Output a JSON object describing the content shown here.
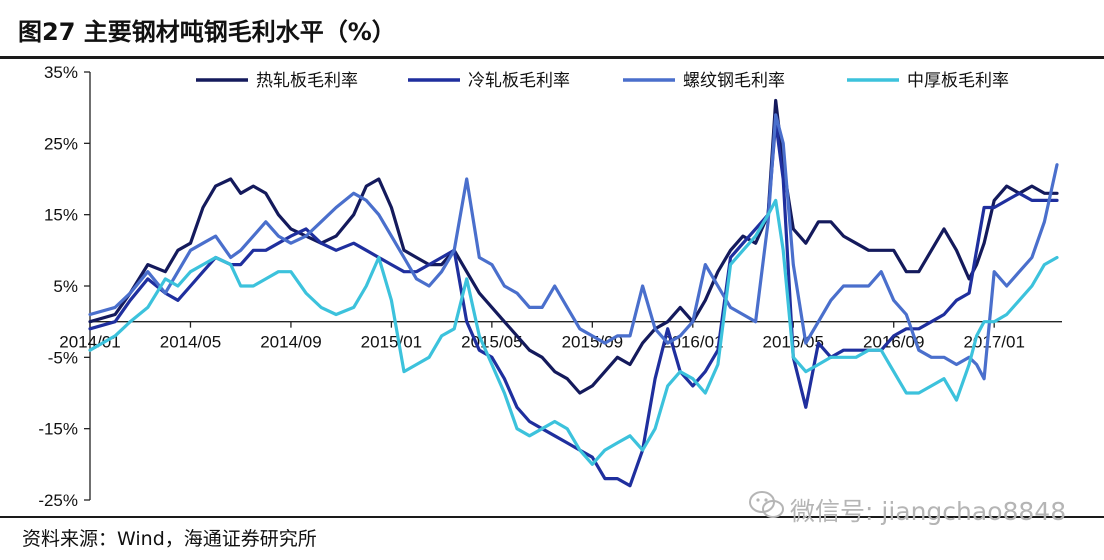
{
  "header": {
    "title": "图27 主要钢材吨钢毛利水平（%）"
  },
  "footer": {
    "source": "资料来源：Wind，海通证券研究所"
  },
  "watermark": {
    "text": "微信号: jiangchao8848"
  },
  "colors": {
    "hot_rolled": "#141a5c",
    "cold_rolled": "#1f2f9e",
    "rebar": "#4a6fcc",
    "plate": "#3cc2dc"
  },
  "chart_data": {
    "type": "line",
    "title": "图27 主要钢材吨钢毛利水平（%）",
    "xlabel": "",
    "ylabel": "",
    "ylim": [
      -25,
      35
    ],
    "yticks": [
      "35%",
      "25%",
      "15%",
      "5%",
      "-5%",
      "-15%",
      "-25%"
    ],
    "ytick_values": [
      35,
      25,
      15,
      5,
      -5,
      -15,
      -25
    ],
    "xticks": [
      "2014/01",
      "2014/05",
      "2014/09",
      "2015/01",
      "2015/05",
      "2015/09",
      "2016/01",
      "2016/05",
      "2016/09",
      "2017/01"
    ],
    "xtick_positions": [
      0,
      4,
      8,
      12,
      16,
      20,
      24,
      28,
      32,
      36
    ],
    "xlim": [
      0,
      38.7
    ],
    "legend_position": "top",
    "grid": false,
    "series": [
      {
        "name": "热轧板毛利率",
        "color": "#141a5c",
        "x": [
          0,
          1,
          1.6,
          2.3,
          3,
          3.5,
          4,
          4.5,
          5,
          5.6,
          6,
          6.5,
          7,
          7.5,
          8,
          8.6,
          9.2,
          9.8,
          10.5,
          11,
          11.5,
          12,
          12.5,
          13,
          13.5,
          14,
          14.5,
          15,
          15.5,
          16,
          16.5,
          17,
          17.5,
          18,
          18.5,
          19,
          19.5,
          20,
          20.5,
          21,
          21.5,
          22,
          22.5,
          23,
          23.5,
          24,
          24.5,
          25,
          25.5,
          26,
          26.5,
          27,
          27.3,
          27.6,
          28,
          28.5,
          29,
          29.5,
          30,
          30.5,
          31,
          31.5,
          32,
          32.5,
          33,
          33.5,
          34,
          34.5,
          35,
          35.3,
          35.6,
          36,
          36.5,
          37,
          37.5,
          38,
          38.5
        ],
        "values": [
          0,
          1,
          4,
          8,
          7,
          10,
          11,
          16,
          19,
          20,
          18,
          19,
          18,
          15,
          13,
          12,
          11,
          12,
          15,
          19,
          20,
          16,
          10,
          9,
          8,
          8,
          10,
          7,
          4,
          2,
          0,
          -2,
          -4,
          -5,
          -7,
          -8,
          -10,
          -9,
          -7,
          -5,
          -6,
          -3,
          -1,
          0,
          2,
          0,
          3,
          7,
          10,
          12,
          11,
          15,
          31,
          22,
          13,
          11,
          14,
          14,
          12,
          11,
          10,
          10,
          10,
          7,
          7,
          10,
          13,
          10,
          6,
          8,
          11,
          17,
          19,
          18,
          19,
          18,
          18
        ]
      },
      {
        "name": "冷轧板毛利率",
        "color": "#1f2f9e",
        "x": [
          0,
          1,
          1.6,
          2.3,
          3,
          3.5,
          4,
          4.5,
          5,
          5.6,
          6,
          6.5,
          7,
          7.5,
          8,
          8.6,
          9.2,
          9.8,
          10.5,
          11,
          11.5,
          12,
          12.5,
          13,
          13.5,
          14,
          14.5,
          15,
          15.5,
          16,
          16.5,
          17,
          17.5,
          18,
          18.5,
          19,
          19.5,
          20,
          20.5,
          21,
          21.5,
          22,
          22.5,
          23,
          23.5,
          24,
          24.5,
          25,
          25.5,
          26,
          26.5,
          27,
          27.3,
          27.6,
          28,
          28.5,
          29,
          29.5,
          30,
          30.5,
          31,
          31.5,
          32,
          32.5,
          33,
          33.5,
          34,
          34.5,
          35,
          35.3,
          35.6,
          36,
          36.5,
          37,
          37.5,
          38,
          38.5
        ],
        "values": [
          -1,
          0,
          3,
          6,
          4,
          3,
          5,
          7,
          9,
          8,
          8,
          10,
          10,
          11,
          12,
          13,
          11,
          10,
          11,
          10,
          9,
          8,
          7,
          7,
          8,
          9,
          10,
          0,
          -4,
          -5,
          -8,
          -12,
          -14,
          -15,
          -16,
          -17,
          -18,
          -19,
          -22,
          -22,
          -23,
          -18,
          -8,
          -1,
          -7,
          -9,
          -7,
          -4,
          9,
          11,
          13,
          15,
          28,
          20,
          -5,
          -12,
          -3,
          -5,
          -4,
          -4,
          -4,
          -4,
          -2,
          -1,
          -1,
          0,
          1,
          3,
          4,
          10,
          16,
          16,
          17,
          18,
          17,
          17,
          17
        ]
      },
      {
        "name": "螺纹钢毛利率",
        "color": "#4a6fcc",
        "x": [
          0,
          1,
          1.6,
          2.3,
          3,
          3.5,
          4,
          4.5,
          5,
          5.6,
          6,
          6.5,
          7,
          7.5,
          8,
          8.6,
          9.2,
          9.8,
          10.5,
          11,
          11.5,
          12,
          12.5,
          13,
          13.5,
          14,
          14.5,
          15,
          15.5,
          16,
          16.5,
          17,
          17.5,
          18,
          18.5,
          19,
          19.5,
          20,
          20.5,
          21,
          21.5,
          22,
          22.5,
          23,
          23.5,
          24,
          24.5,
          25,
          25.5,
          26,
          26.5,
          27,
          27.3,
          27.6,
          28,
          28.5,
          29,
          29.5,
          30,
          30.5,
          31,
          31.5,
          32,
          32.5,
          33,
          33.5,
          34,
          34.5,
          35,
          35.3,
          35.6,
          36,
          36.5,
          37,
          37.5,
          38,
          38.5
        ],
        "values": [
          1,
          2,
          4,
          7,
          4,
          7,
          10,
          11,
          12,
          9,
          10,
          12,
          14,
          12,
          11,
          12,
          14,
          16,
          18,
          17,
          15,
          12,
          9,
          6,
          5,
          7,
          10,
          20,
          9,
          8,
          5,
          4,
          2,
          2,
          5,
          2,
          -1,
          -2,
          -3,
          -2,
          -2,
          5,
          -1,
          -3,
          -2,
          0,
          8,
          5,
          2,
          1,
          0,
          14,
          29,
          25,
          8,
          -3,
          0,
          3,
          5,
          5,
          5,
          7,
          3,
          1,
          -4,
          -5,
          -5,
          -6,
          -5,
          -6,
          -8,
          7,
          5,
          7,
          9,
          14,
          22
        ]
      },
      {
        "name": "中厚板毛利率",
        "color": "#3cc2dc",
        "x": [
          0,
          1,
          1.6,
          2.3,
          3,
          3.5,
          4,
          4.5,
          5,
          5.6,
          6,
          6.5,
          7,
          7.5,
          8,
          8.6,
          9.2,
          9.8,
          10.5,
          11,
          11.5,
          12,
          12.5,
          13,
          13.5,
          14,
          14.5,
          15,
          15.5,
          16,
          16.5,
          17,
          17.5,
          18,
          18.5,
          19,
          19.5,
          20,
          20.5,
          21,
          21.5,
          22,
          22.5,
          23,
          23.5,
          24,
          24.5,
          25,
          25.5,
          26,
          26.5,
          27,
          27.3,
          27.6,
          28,
          28.5,
          29,
          29.5,
          30,
          30.5,
          31,
          31.5,
          32,
          32.5,
          33,
          33.5,
          34,
          34.5,
          35,
          35.3,
          35.6,
          36,
          36.5,
          37,
          37.5,
          38,
          38.5
        ],
        "values": [
          -4,
          -2,
          0,
          2,
          6,
          5,
          7,
          8,
          9,
          8,
          5,
          5,
          6,
          7,
          7,
          4,
          2,
          1,
          2,
          5,
          9,
          3,
          -7,
          -6,
          -5,
          -2,
          -1,
          6,
          -2,
          -6,
          -10,
          -15,
          -16,
          -15,
          -14,
          -15,
          -18,
          -20,
          -18,
          -17,
          -16,
          -18,
          -15,
          -9,
          -7,
          -8,
          -10,
          -6,
          8,
          10,
          12,
          15,
          17,
          10,
          -5,
          -7,
          -6,
          -5,
          -5,
          -5,
          -4,
          -4,
          -7,
          -10,
          -10,
          -9,
          -8,
          -11,
          -6,
          -2,
          0,
          0,
          1,
          3,
          5,
          8,
          9
        ]
      }
    ]
  }
}
